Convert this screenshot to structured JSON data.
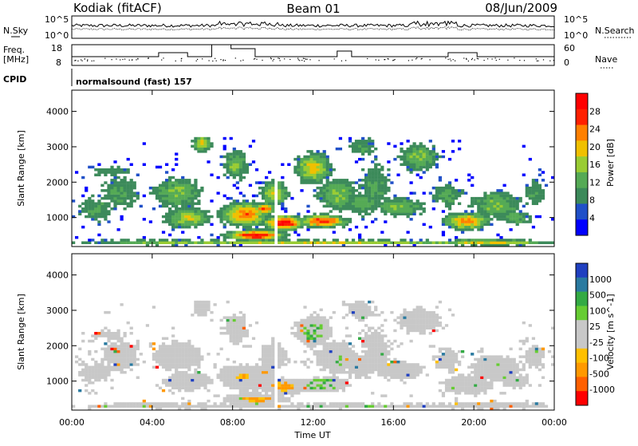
{
  "header": {
    "station": "Kodiak (fitACF)",
    "beam": "Beam 01",
    "date": "08/Jun/2009"
  },
  "top_panels": {
    "noise": {
      "left_label": "N.Sky",
      "right_label": "N.Search",
      "left_ticks": [
        "10^5",
        "10^0"
      ],
      "right_ticks": [
        "10^5",
        "10^0"
      ]
    },
    "freq": {
      "left_label_line1": "Freq.",
      "left_label_line2": "[MHz]",
      "right_label": "Nave",
      "left_ticks": [
        "18",
        "8"
      ],
      "right_ticks": [
        "60",
        "0"
      ]
    },
    "cpid": {
      "label": "CPID",
      "text": "normalsound (fast) 157"
    }
  },
  "colors": {
    "power": [
      "#0000ff",
      "#2050c8",
      "#3c8a5a",
      "#55aa55",
      "#99cc33",
      "#f0c000",
      "#ff8000",
      "#ff2000",
      "#ff0000"
    ],
    "velocity": [
      "#ff0000",
      "#ff6000",
      "#ff9900",
      "#ffc000",
      "#c8c8c8",
      "#c8c8c8",
      "#66cc33",
      "#33aa44",
      "#2a7aa0",
      "#2040c0"
    ]
  },
  "chart_data": [
    {
      "type": "heatmap",
      "name": "power",
      "xlabel": "",
      "ylabel": "Slant Range [km]",
      "x_ticks": [
        "00:00",
        "04:00",
        "08:00",
        "12:00",
        "16:00",
        "20:00",
        "00:00"
      ],
      "y_ticks": [
        "1000",
        "2000",
        "3000",
        "4000"
      ],
      "y_range": [
        180,
        4600
      ],
      "colorbar_label": "Power [dB]",
      "colorbar_ticks": [
        "4",
        "8",
        "12",
        "16",
        "20",
        "24",
        "28"
      ],
      "colorbar_range": [
        0,
        32
      ]
    },
    {
      "type": "heatmap",
      "name": "velocity",
      "xlabel": "Time UT",
      "ylabel": "Slant Range [km]",
      "x_ticks": [
        "00:00",
        "04:00",
        "08:00",
        "12:00",
        "16:00",
        "20:00",
        "00:00"
      ],
      "y_ticks": [
        "1000",
        "2000",
        "3000",
        "4000"
      ],
      "y_range": [
        180,
        4600
      ],
      "colorbar_label": "Velocity [m s^-1]",
      "colorbar_ticks": [
        "1000",
        "500",
        "100",
        "25",
        "-25",
        "-100",
        "-500",
        "-1000"
      ]
    }
  ]
}
